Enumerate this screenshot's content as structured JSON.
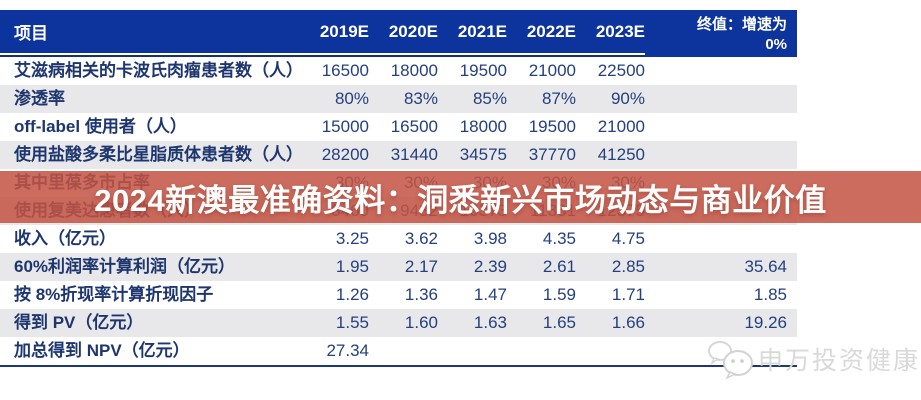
{
  "table": {
    "header": {
      "project_label": "项目",
      "year_columns": [
        "2019E",
        "2020E",
        "2021E",
        "2022E",
        "2023E"
      ],
      "terminal_line1": "终值：增速为",
      "terminal_line2": "0%"
    },
    "rows": [
      {
        "label": "艾滋病相关的卡波氏肉瘤患者数（人）",
        "values": [
          "16500",
          "18000",
          "19500",
          "21000",
          "22500"
        ],
        "terminal": ""
      },
      {
        "label": "渗透率",
        "values": [
          "80%",
          "83%",
          "85%",
          "87%",
          "90%"
        ],
        "terminal": ""
      },
      {
        "label": "off-label 使用者（人）",
        "values": [
          "15000",
          "16500",
          "18000",
          "19500",
          "21000"
        ],
        "terminal": ""
      },
      {
        "label": "使用盐酸多柔比星脂质体患者数（人）",
        "values": [
          "28200",
          "31440",
          "34575",
          "37770",
          "41250"
        ],
        "terminal": ""
      },
      {
        "label": "其中里葆多市占率",
        "values": [
          "30%",
          "30%",
          "30%",
          "30%",
          "30%"
        ],
        "terminal": ""
      },
      {
        "label": "使用复美达患者数（人）",
        "values": [
          "8460",
          "9432",
          "10373",
          "11331",
          "12375"
        ],
        "terminal": ""
      },
      {
        "label": "收入（亿元）",
        "values": [
          "3.25",
          "3.62",
          "3.98",
          "4.35",
          "4.75"
        ],
        "terminal": ""
      },
      {
        "label": "60%利润率计算利润（亿元）",
        "values": [
          "1.95",
          "2.17",
          "2.39",
          "2.61",
          "2.85"
        ],
        "terminal": "35.64"
      },
      {
        "label": "按 8%折现率计算折现因子",
        "values": [
          "1.26",
          "1.36",
          "1.47",
          "1.59",
          "1.71"
        ],
        "terminal": "1.85"
      },
      {
        "label": "得到 PV（亿元）",
        "values": [
          "1.55",
          "1.60",
          "1.63",
          "1.65",
          "1.66"
        ],
        "terminal": "19.26"
      },
      {
        "label": "加总得到 NPV（亿元）",
        "values": [
          "27.34",
          "",
          "",
          "",
          ""
        ],
        "terminal": ""
      }
    ]
  },
  "banner": {
    "text": "2024新澳最准确资料：洞悉新兴市场动态与商业价值"
  },
  "watermark": {
    "text": "申万投资健康",
    "icon": "wechat-bubbles-icon"
  },
  "colors": {
    "header_blue": "#0d339c",
    "stripe_gray": "#e8e8ea",
    "text_navy": "#24407f",
    "banner_red": "rgba(196,84,68,0.86)",
    "watermark_gray": "#d9d9d9"
  }
}
